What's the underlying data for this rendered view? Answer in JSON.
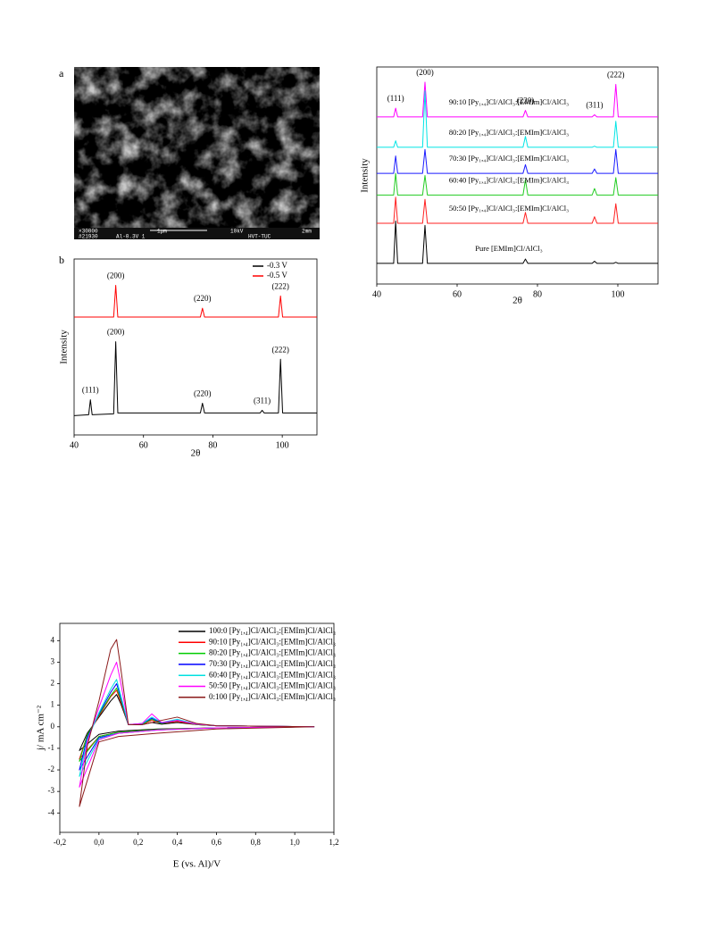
{
  "sem_image": {
    "panel_label": "a",
    "caption": [
      "×30000",
      "1μm",
      "10kV",
      "2mm",
      "#21930",
      "Al-0.3V 1",
      "HVT-TUC"
    ]
  },
  "chart_data": [
    {
      "type": "line",
      "panel_label": "b",
      "xlabel": "2θ",
      "ylabel": "Intensity",
      "legend": "upper right",
      "xlim": [
        40,
        110
      ],
      "xticks": [
        40,
        60,
        80,
        100
      ],
      "ylim": [
        0,
        100
      ],
      "x": [
        40,
        44.2,
        44.7,
        45.2,
        51.4,
        52,
        52.6,
        76.4,
        77,
        77.6,
        93.6,
        94.2,
        94.8,
        98.9,
        99.5,
        100.1,
        110
      ],
      "series": [
        {
          "name": "-0.3 V",
          "color": "#000000",
          "values": [
            11,
            11.5,
            20,
            11.5,
            12,
            53,
            12.5,
            12.5,
            18,
            12.5,
            12.5,
            14,
            12.5,
            12.5,
            43,
            12.5,
            12.5
          ],
          "peak_labels": [
            {
              "label": "(111)",
              "x": 44.7
            },
            {
              "label": "(200)",
              "x": 52
            },
            {
              "label": "(220)",
              "x": 77
            },
            {
              "label": "(311)",
              "x": 94.2
            },
            {
              "label": "(222)",
              "x": 99.5
            }
          ]
        },
        {
          "name": "-0.5 V",
          "color": "#ff0000",
          "values": [
            67,
            67,
            67,
            67,
            67,
            85,
            67,
            67,
            72,
            67,
            67,
            67,
            67,
            67,
            79,
            67,
            67
          ],
          "peak_labels": [
            {
              "label": "(200)",
              "x": 52
            },
            {
              "label": "(220)",
              "x": 77
            },
            {
              "label": "(222)",
              "x": 99.5
            }
          ]
        }
      ]
    },
    {
      "type": "line",
      "xlabel": "2θ",
      "ylabel": "Intensity",
      "series_labels": "inline",
      "xlim": [
        40,
        110
      ],
      "xticks": [
        40,
        60,
        80,
        100
      ],
      "ylim": [
        0,
        100
      ],
      "x": [
        40,
        44.2,
        44.7,
        45.2,
        51.4,
        52,
        52.6,
        76.4,
        77,
        77.6,
        93.6,
        94.2,
        94.8,
        98.9,
        99.5,
        100.1,
        110
      ],
      "peak_labels": [
        {
          "label": "(111)",
          "x": 44.7
        },
        {
          "label": "(200)",
          "x": 52
        },
        {
          "label": "(220)",
          "x": 77
        },
        {
          "label": "(311)",
          "x": 94.2
        },
        {
          "label": "(222)",
          "x": 99.5
        }
      ],
      "series": [
        {
          "name": "90:10 [Py₁,₄]Cl/AlCl₃:[EMIm]Cl/AlCl₃",
          "color": "#ff00ff",
          "values": [
            77,
            77,
            81,
            77,
            77,
            93,
            77,
            77,
            80,
            77,
            77,
            78,
            77,
            77,
            92,
            77,
            77
          ]
        },
        {
          "name": "80:20 [Py₁,₄]Cl/AlCl₃:[EMIm]Cl/AlCl₃",
          "color": "#00e5e5",
          "values": [
            63,
            63,
            66,
            63,
            63,
            89,
            63,
            63,
            68,
            63,
            63,
            63.5,
            63,
            63,
            75,
            63,
            63
          ]
        },
        {
          "name": "70:30 [Py₁,₄]Cl/AlCl₃:[EMIm]Cl/AlCl₃",
          "color": "#1a1aff",
          "values": [
            51,
            51,
            59,
            51,
            51,
            62,
            51,
            51,
            55,
            51,
            51,
            53,
            51,
            51,
            62,
            51,
            51
          ]
        },
        {
          "name": "60:40 [Py₁,₄]Cl/AlCl₃:[EMIm]Cl/AlCl₃",
          "color": "#22cc22",
          "values": [
            41,
            41,
            51,
            41,
            41,
            50,
            41,
            41,
            48,
            41,
            41,
            44,
            41,
            41,
            49,
            41,
            41
          ]
        },
        {
          "name": "50:50 [Py₁,₄]Cl/AlCl₃:[EMIm]Cl/AlCl₃",
          "color": "#ff2020",
          "values": [
            28,
            28,
            40,
            28,
            28,
            39,
            28,
            28,
            33,
            28,
            28,
            31,
            28,
            28,
            37,
            28,
            28
          ]
        },
        {
          "name": "Pure [EMIm]Cl/AlCl₃",
          "color": "#000000",
          "values": [
            9.5,
            9.5,
            29,
            9.5,
            9.5,
            27,
            9.5,
            9.5,
            11.5,
            9.5,
            9.5,
            10.5,
            9.5,
            9.5,
            10,
            9.5,
            9.5
          ]
        }
      ]
    },
    {
      "type": "line",
      "xlabel": "E (vs. Al)/V",
      "ylabel": "j/ mA cm⁻²",
      "legend": "upper right",
      "xlim": [
        -0.2,
        1.2
      ],
      "xticks": [
        {
          "value": -0.2,
          "label": "-0,2"
        },
        {
          "value": 0,
          "label": "0,0"
        },
        {
          "value": 0.2,
          "label": "0,2"
        },
        {
          "value": 0.4,
          "label": "0,4"
        },
        {
          "value": 0.6,
          "label": "0,6"
        },
        {
          "value": 0.8,
          "label": "0,8"
        },
        {
          "value": 1,
          "label": "1,0"
        },
        {
          "value": 1.2,
          "label": "1,2"
        }
      ],
      "ylim": [
        -4.9,
        4.8
      ],
      "yticks": [
        -4,
        -3,
        -2,
        -1,
        0,
        1,
        2,
        3,
        4
      ],
      "x": [
        1.1,
        0.6,
        0.3,
        0.1,
        0,
        -0.1,
        -0.06,
        0,
        0.06,
        0.09,
        0.11,
        0.15,
        0.22,
        0.27,
        0.32,
        0.4,
        0.5,
        0.6,
        1.1
      ],
      "series": [
        {
          "name": "100:0 [Py₁,₄]Cl/AlCl₃:[EMIm]Cl/AlCl₃",
          "color": "#000000",
          "values": [
            0,
            -0.05,
            -0.1,
            -0.2,
            -0.35,
            -1.1,
            -0.3,
            0.45,
            1.2,
            1.5,
            1.1,
            0.1,
            0.1,
            0.2,
            0.12,
            0.2,
            0.1,
            0.05,
            0
          ]
        },
        {
          "name": "90:10 [Py₁,₄]Cl/AlCl₃:[EMIm]Cl/AlCl₃",
          "color": "#ff0000",
          "values": [
            0,
            -0.05,
            -0.12,
            -0.25,
            -0.45,
            -1.5,
            -0.4,
            0.5,
            1.4,
            1.7,
            1.2,
            0.1,
            0.12,
            0.3,
            0.15,
            0.25,
            0.1,
            0.05,
            0
          ]
        },
        {
          "name": "80:20 [Py₁,₄]Cl/AlCl₃:[EMIm]Cl/AlCl₃",
          "color": "#00cc00",
          "values": [
            0,
            -0.05,
            -0.12,
            -0.25,
            -0.45,
            -1.6,
            -0.4,
            0.55,
            1.45,
            1.8,
            1.3,
            0.1,
            0.12,
            0.35,
            0.15,
            0.3,
            0.1,
            0.05,
            0
          ]
        },
        {
          "name": "70:30 [Py₁,₄]Cl/AlCl₃:[EMIm]Cl/AlCl₃",
          "color": "#0000ff",
          "values": [
            0,
            -0.05,
            -0.15,
            -0.3,
            -0.5,
            -2.0,
            -0.5,
            0.6,
            1.6,
            2.0,
            1.4,
            0.1,
            0.15,
            0.4,
            0.18,
            0.3,
            0.12,
            0.05,
            0
          ]
        },
        {
          "name": "60:40 [Py₁,₄]Cl/AlCl₃:[EMIm]Cl/AlCl₃",
          "color": "#00e0e0",
          "values": [
            0,
            -0.05,
            -0.15,
            -0.3,
            -0.55,
            -2.3,
            -0.6,
            0.65,
            1.75,
            2.2,
            1.5,
            0.1,
            0.15,
            0.45,
            0.2,
            0.35,
            0.12,
            0.05,
            0
          ]
        },
        {
          "name": "50:50 [Py₁,₄]Cl/AlCl₃:[EMIm]Cl/AlCl₃",
          "color": "#ff00ff",
          "values": [
            0,
            -0.05,
            -0.15,
            -0.3,
            -0.6,
            -2.8,
            -0.7,
            0.9,
            2.4,
            3.0,
            2.1,
            0.1,
            0.15,
            0.6,
            0.2,
            0.3,
            0.12,
            0.05,
            0
          ]
        },
        {
          "name": "0:100 [Py₁,₄]Cl/AlCl₃:[EMIm]Cl/AlCl₃",
          "color": "#8b1a1a",
          "values": [
            0,
            -0.1,
            -0.3,
            -0.45,
            -0.7,
            -3.7,
            -0.9,
            1.2,
            3.6,
            4.05,
            2.8,
            0.1,
            0.1,
            0.2,
            0.3,
            0.45,
            0.15,
            0.05,
            0
          ]
        }
      ]
    }
  ]
}
